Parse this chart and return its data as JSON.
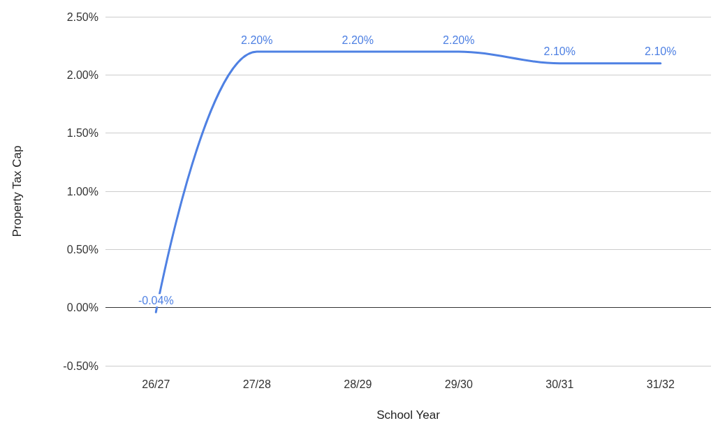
{
  "chart_data": {
    "type": "line",
    "xlabel": "School Year",
    "ylabel": "Property Tax Cap",
    "categories": [
      "26/27",
      "27/28",
      "28/29",
      "29/30",
      "30/31",
      "31/32"
    ],
    "series": [
      {
        "color": "#4f81e3",
        "values": [
          -0.04,
          2.2,
          2.2,
          2.2,
          2.1,
          2.1
        ],
        "value_labels": [
          "-0.04%",
          "2.20%",
          "2.20%",
          "2.20%",
          "2.10%",
          "2.10%"
        ]
      }
    ],
    "ylim": [
      -0.5,
      2.5
    ],
    "yticks": [
      {
        "value": -0.5,
        "label": "-0.50%"
      },
      {
        "value": 0,
        "label": "0.00%"
      },
      {
        "value": 0.5,
        "label": "0.50%"
      },
      {
        "value": 1,
        "label": "1.00%"
      },
      {
        "value": 1.5,
        "label": "1.50%"
      },
      {
        "value": 2,
        "label": "2.00%"
      },
      {
        "value": 2.5,
        "label": "2.50%"
      }
    ],
    "grid": "y",
    "marker": "none",
    "line_style": "solid"
  }
}
